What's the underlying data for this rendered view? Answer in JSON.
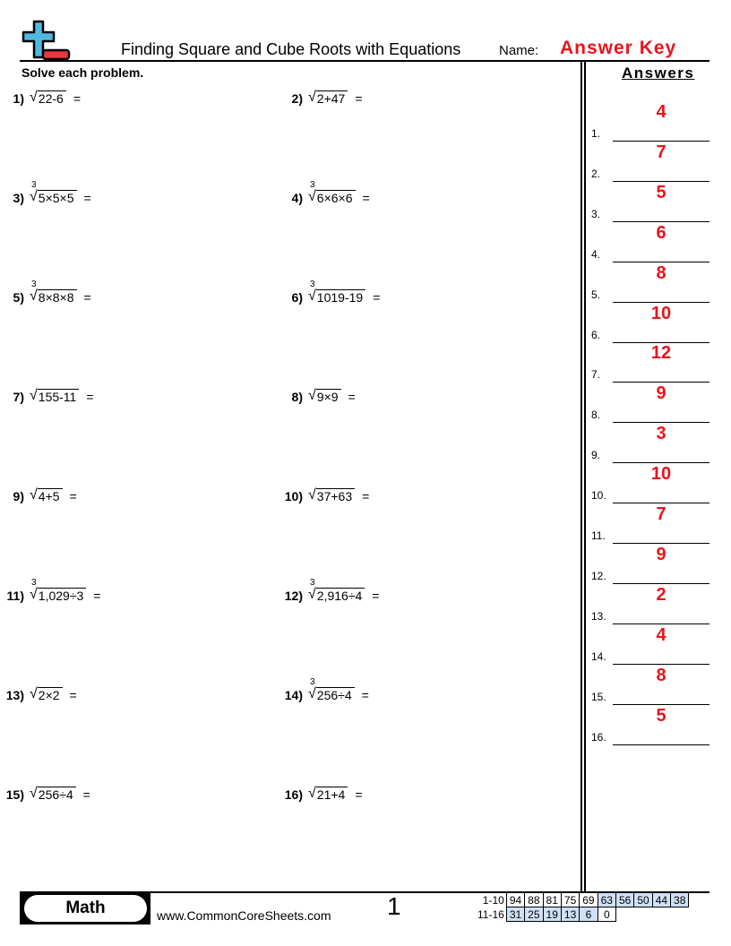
{
  "header": {
    "title": "Finding Square and Cube Roots with Equations",
    "name_label": "Name:",
    "name_value": "Answer Key",
    "instructions": "Solve each problem.",
    "answers_heading": "Answers"
  },
  "problems": [
    {
      "num": "1)",
      "index": "",
      "radicand": "22-6"
    },
    {
      "num": "2)",
      "index": "",
      "radicand": "2+47"
    },
    {
      "num": "3)",
      "index": "3",
      "radicand": "5×5×5"
    },
    {
      "num": "4)",
      "index": "3",
      "radicand": "6×6×6"
    },
    {
      "num": "5)",
      "index": "3",
      "radicand": "8×8×8"
    },
    {
      "num": "6)",
      "index": "3",
      "radicand": "1019-19"
    },
    {
      "num": "7)",
      "index": "",
      "radicand": "155-11"
    },
    {
      "num": "8)",
      "index": "",
      "radicand": "9×9"
    },
    {
      "num": "9)",
      "index": "",
      "radicand": "4+5"
    },
    {
      "num": "10)",
      "index": "",
      "radicand": "37+63"
    },
    {
      "num": "11)",
      "index": "3",
      "radicand": "1,029÷3"
    },
    {
      "num": "12)",
      "index": "3",
      "radicand": "2,916÷4"
    },
    {
      "num": "13)",
      "index": "",
      "radicand": "2×2"
    },
    {
      "num": "14)",
      "index": "3",
      "radicand": "256÷4"
    },
    {
      "num": "15)",
      "index": "",
      "radicand": "256÷4"
    },
    {
      "num": "16)",
      "index": "",
      "radicand": "21+4"
    }
  ],
  "equals": "=",
  "radical_symbol": "√",
  "answers": [
    {
      "num": "1.",
      "value": "4"
    },
    {
      "num": "2.",
      "value": "7"
    },
    {
      "num": "3.",
      "value": "5"
    },
    {
      "num": "4.",
      "value": "6"
    },
    {
      "num": "5.",
      "value": "8"
    },
    {
      "num": "6.",
      "value": "10"
    },
    {
      "num": "7.",
      "value": "12"
    },
    {
      "num": "8.",
      "value": "9"
    },
    {
      "num": "9.",
      "value": "3"
    },
    {
      "num": "10.",
      "value": "10"
    },
    {
      "num": "11.",
      "value": "7"
    },
    {
      "num": "12.",
      "value": "9"
    },
    {
      "num": "13.",
      "value": "2"
    },
    {
      "num": "14.",
      "value": "4"
    },
    {
      "num": "15.",
      "value": "8"
    },
    {
      "num": "16.",
      "value": "5"
    }
  ],
  "footer": {
    "subject": "Math",
    "site": "www.CommonCoreSheets.com",
    "page": "1",
    "score_rows": [
      {
        "label": "1-10",
        "cells": [
          "94",
          "88",
          "81",
          "75",
          "69",
          "63",
          "56",
          "50",
          "44",
          "38"
        ],
        "shaded_from": 5
      },
      {
        "label": "11-16",
        "cells": [
          "31",
          "25",
          "19",
          "13",
          "6",
          "0"
        ],
        "shaded_upto": 5
      }
    ]
  },
  "colors": {
    "answer_red": "#e8141b",
    "score_blue": "#cfe0f7",
    "logo_blue": "#4fb8e0",
    "logo_red": "#e8383d"
  }
}
